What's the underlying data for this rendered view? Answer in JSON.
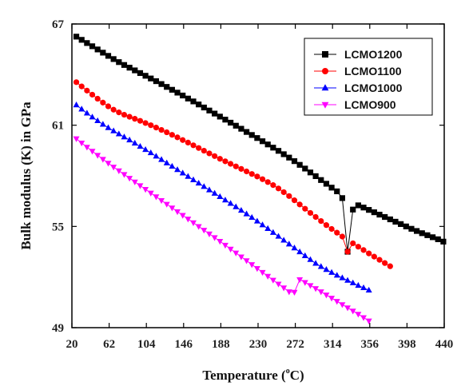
{
  "chart_data": {
    "type": "line",
    "xlabel": "Temperature (",
    "xlabel_unit": "o",
    "xlabel_end": "C)",
    "ylabel": "Bulk modulus (K) in GPa",
    "xlim": [
      20,
      440
    ],
    "ylim": [
      49,
      67
    ],
    "xticks": [
      20,
      62,
      104,
      146,
      188,
      230,
      272,
      314,
      356,
      398,
      440
    ],
    "yticks": [
      49,
      55,
      61,
      67
    ],
    "grid": false,
    "legend_position": "top-right",
    "x_start": 25,
    "x_step": 6,
    "series": [
      {
        "name": "LCMO1200",
        "color": "#000000",
        "marker": "square",
        "values": [
          66.25,
          66.06,
          65.87,
          65.68,
          65.49,
          65.3,
          65.11,
          64.92,
          64.74,
          64.57,
          64.41,
          64.25,
          64.09,
          63.93,
          63.77,
          63.61,
          63.44,
          63.27,
          63.1,
          62.93,
          62.76,
          62.58,
          62.41,
          62.23,
          62.05,
          61.87,
          61.69,
          61.51,
          61.33,
          61.15,
          60.97,
          60.79,
          60.6,
          60.42,
          60.24,
          60.05,
          59.86,
          59.67,
          59.48,
          59.28,
          59.08,
          58.87,
          58.65,
          58.43,
          58.2,
          57.98,
          57.75,
          57.53,
          57.3,
          57.08,
          56.68,
          53.5,
          56.0,
          56.25,
          56.12,
          55.98,
          55.84,
          55.7,
          55.56,
          55.42,
          55.28,
          55.14,
          55.0,
          54.86,
          54.73,
          54.6,
          54.48,
          54.36,
          54.24,
          54.1
        ]
      },
      {
        "name": "LCMO1100",
        "color": "#ff0000",
        "marker": "circle",
        "values": [
          63.55,
          63.3,
          63.05,
          62.81,
          62.57,
          62.34,
          62.12,
          61.92,
          61.76,
          61.62,
          61.5,
          61.38,
          61.26,
          61.13,
          61.0,
          60.86,
          60.72,
          60.58,
          60.43,
          60.28,
          60.12,
          59.97,
          59.81,
          59.65,
          59.49,
          59.33,
          59.17,
          59.01,
          58.86,
          58.71,
          58.56,
          58.41,
          58.26,
          58.11,
          57.96,
          57.8,
          57.63,
          57.45,
          57.25,
          57.03,
          56.8,
          56.55,
          56.3,
          56.05,
          55.8,
          55.56,
          55.32,
          55.08,
          54.85,
          54.63,
          54.4,
          53.5,
          54.0,
          53.8,
          53.6,
          53.4,
          53.21,
          53.02,
          52.83,
          52.64
        ]
      },
      {
        "name": "LCMO1000",
        "color": "#0000ff",
        "marker": "triangle-up",
        "values": [
          62.2,
          61.95,
          61.71,
          61.48,
          61.26,
          61.05,
          60.85,
          60.66,
          60.48,
          60.3,
          60.12,
          59.93,
          59.74,
          59.55,
          59.36,
          59.16,
          58.96,
          58.76,
          58.56,
          58.36,
          58.16,
          57.96,
          57.76,
          57.56,
          57.36,
          57.16,
          56.96,
          56.76,
          56.56,
          56.36,
          56.16,
          55.95,
          55.74,
          55.53,
          55.31,
          55.09,
          54.87,
          54.64,
          54.41,
          54.18,
          53.95,
          53.72,
          53.49,
          53.26,
          53.03,
          52.81,
          52.62,
          52.44,
          52.27,
          52.1,
          51.95,
          51.8,
          51.65,
          51.5,
          51.36,
          51.22
        ]
      },
      {
        "name": "LCMO900",
        "color": "#ff00ff",
        "marker": "triangle-down",
        "values": [
          60.2,
          59.95,
          59.7,
          59.46,
          59.22,
          58.98,
          58.75,
          58.52,
          58.3,
          58.08,
          57.86,
          57.64,
          57.42,
          57.2,
          56.98,
          56.76,
          56.54,
          56.32,
          56.1,
          55.88,
          55.66,
          55.44,
          55.22,
          55.0,
          54.78,
          54.56,
          54.34,
          54.12,
          53.89,
          53.66,
          53.43,
          53.2,
          52.97,
          52.74,
          52.51,
          52.28,
          52.05,
          51.82,
          51.59,
          51.36,
          51.13,
          51.1,
          51.85,
          51.68,
          51.5,
          51.32,
          51.13,
          50.94,
          50.75,
          50.56,
          50.37,
          50.18,
          49.99,
          49.8,
          49.6,
          49.4
        ]
      }
    ]
  }
}
